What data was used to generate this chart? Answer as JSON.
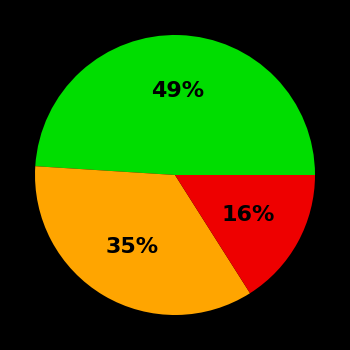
{
  "slices": [
    49,
    35,
    16
  ],
  "colors": [
    "#00DD00",
    "#FFA500",
    "#EE0000"
  ],
  "labels": [
    "49%",
    "35%",
    "16%"
  ],
  "background_color": "#000000",
  "startangle": 0,
  "figsize": [
    3.5,
    3.5
  ],
  "dpi": 100
}
